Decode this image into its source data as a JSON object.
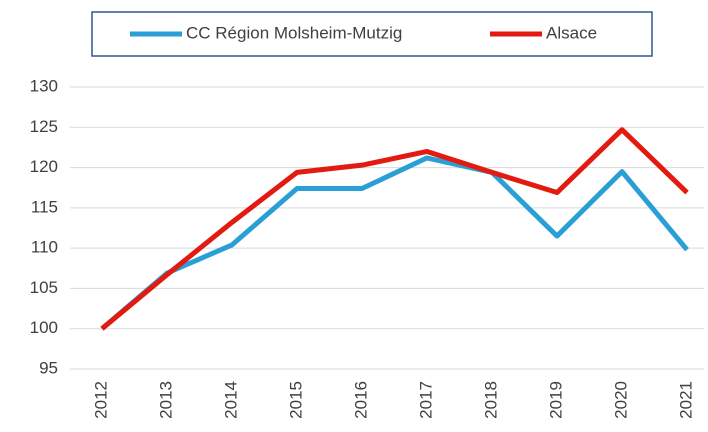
{
  "chart_data": {
    "type": "line",
    "categories": [
      "2012",
      "2013",
      "2014",
      "2015",
      "2016",
      "2017",
      "2018",
      "2019",
      "2020",
      "2021"
    ],
    "series": [
      {
        "name": "CC Région Molsheim-Mutzig",
        "color": "#2a9fd6",
        "values": [
          100,
          106.9,
          110.4,
          117.4,
          117.4,
          121.2,
          119.4,
          111.5,
          119.5,
          109.8
        ]
      },
      {
        "name": "Alsace",
        "color": "#e31a0f",
        "values": [
          100,
          106.7,
          113.2,
          119.4,
          120.3,
          122,
          119.4,
          116.9,
          124.7,
          116.9
        ]
      }
    ],
    "ylim": [
      95,
      130
    ],
    "yticks": [
      95,
      100,
      105,
      110,
      115,
      120,
      125,
      130
    ],
    "grid": true,
    "legend": "top"
  }
}
